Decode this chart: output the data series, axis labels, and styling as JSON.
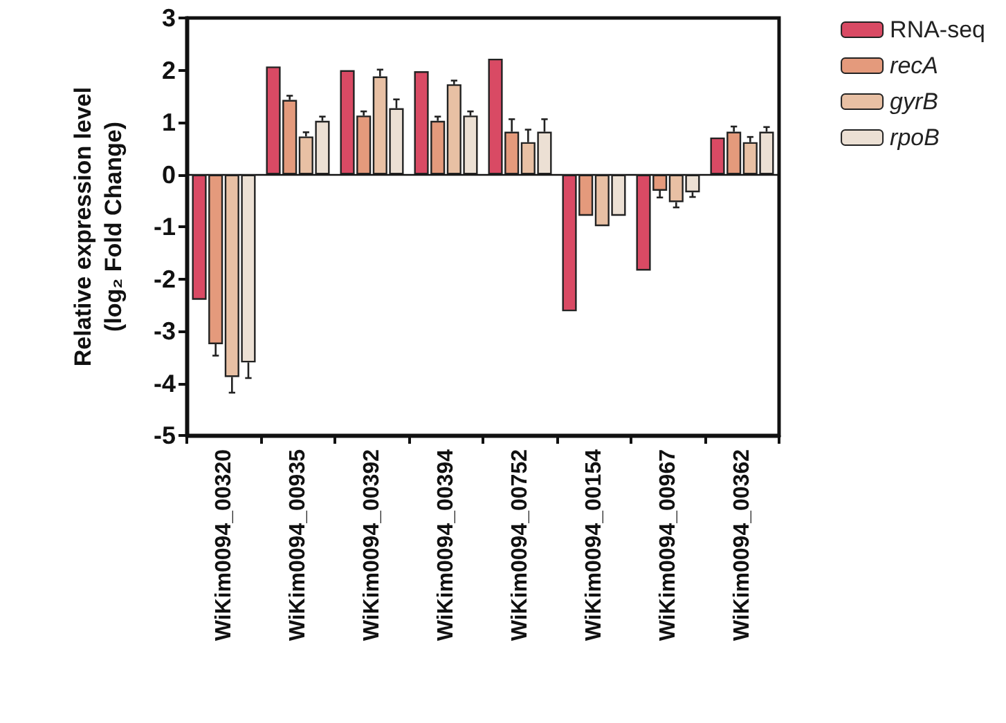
{
  "chart_data": {
    "type": "bar",
    "ylabel": "Relative expression level\n(log₂ Fold Change)",
    "categories": [
      "WiKim0094_00320",
      "WiKim0094_00935",
      "WiKim0094_00392",
      "WiKim0094_00394",
      "WiKim0094_00752",
      "WiKim0094_00154",
      "WiKim0094_00967",
      "WiKim0094_00362"
    ],
    "series": [
      {
        "name": "RNA-seq",
        "color": "#d94a64",
        "values": [
          -2.4,
          2.07,
          2.0,
          1.98,
          2.22,
          -2.62,
          -1.84,
          0.71
        ]
      },
      {
        "name": "recA",
        "color": "#e49a7c",
        "values": [
          -3.25,
          1.43,
          1.13,
          1.03,
          0.82,
          -0.79,
          -0.31,
          0.82
        ],
        "errors": [
          [
            -3.47,
            -3.25
          ],
          [
            1.43,
            1.51
          ],
          [
            1.13,
            1.21
          ],
          [
            1.03,
            1.11
          ],
          [
            0.82,
            1.06
          ],
          null,
          [
            -0.44,
            -0.31
          ],
          [
            0.82,
            0.92
          ]
        ]
      },
      {
        "name": "gyrB",
        "color": "#e8c0a4",
        "values": [
          -3.88,
          0.73,
          1.88,
          1.73,
          0.62,
          -0.99,
          -0.53,
          0.62
        ],
        "errors": [
          [
            -4.18,
            -3.88
          ],
          [
            0.73,
            0.81
          ],
          [
            1.88,
            2.01
          ],
          [
            1.73,
            1.8
          ],
          [
            0.62,
            0.86
          ],
          null,
          [
            -0.63,
            -0.53
          ],
          [
            0.62,
            0.72
          ]
        ]
      },
      {
        "name": "rpoB",
        "color": "#ece0d4",
        "values": [
          -3.6,
          1.03,
          1.27,
          1.13,
          0.82,
          -0.79,
          -0.34,
          0.82
        ],
        "errors": [
          [
            -3.9,
            -3.6
          ],
          [
            1.03,
            1.11
          ],
          [
            1.27,
            1.44
          ],
          [
            1.13,
            1.21
          ],
          [
            0.82,
            1.06
          ],
          null,
          [
            -0.43,
            -0.34
          ],
          [
            0.82,
            0.91
          ]
        ]
      }
    ],
    "ylim": [
      -5,
      3
    ],
    "yticks": [
      -5,
      -4,
      -3,
      -2,
      -1,
      0,
      1,
      2,
      3
    ],
    "legend": "top right"
  }
}
